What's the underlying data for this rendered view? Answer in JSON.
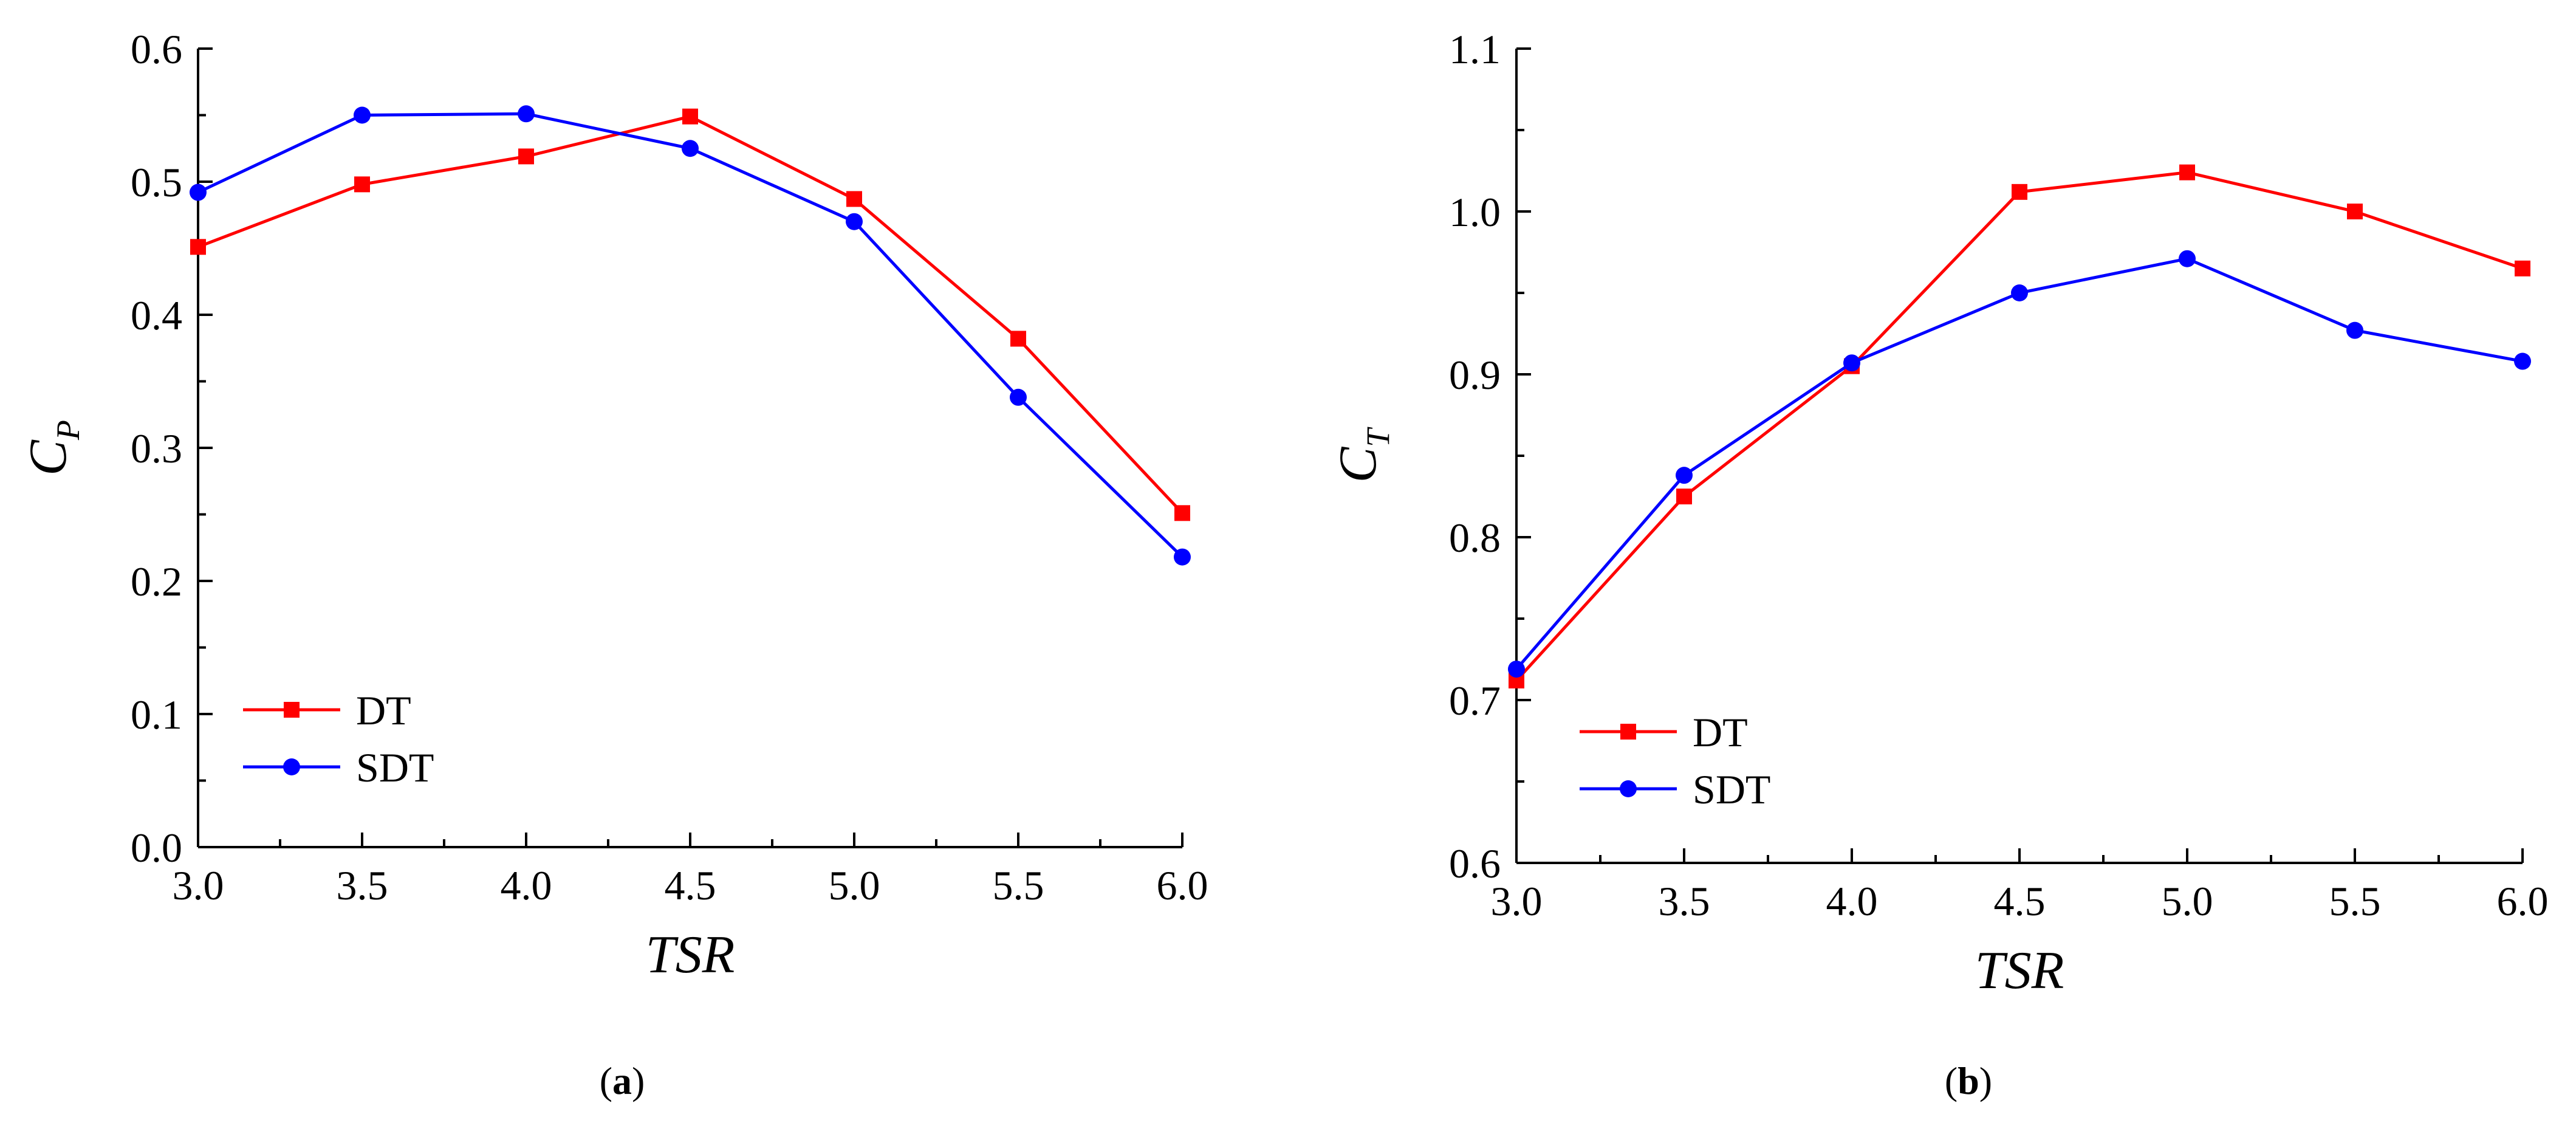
{
  "chart_data": [
    {
      "type": "line",
      "panel": "a",
      "xlabel": "TSR",
      "ylabel": "C",
      "ylabel_sub": "P",
      "xlim": [
        3.0,
        6.0
      ],
      "ylim": [
        0.0,
        0.6
      ],
      "xticks": [
        "3.0",
        "3.5",
        "4.0",
        "4.5",
        "5.0",
        "5.5",
        "6.0"
      ],
      "yticks": [
        "0.0",
        "0.1",
        "0.2",
        "0.3",
        "0.4",
        "0.5",
        "0.6"
      ],
      "x": [
        3.0,
        3.5,
        4.0,
        4.5,
        5.0,
        5.5,
        6.0
      ],
      "series": [
        {
          "name": "DT",
          "color": "#ff0000",
          "marker": "square",
          "values": [
            0.451,
            0.498,
            0.519,
            0.549,
            0.487,
            0.382,
            0.251
          ]
        },
        {
          "name": "SDT",
          "color": "#0000ff",
          "marker": "circle",
          "values": [
            0.492,
            0.55,
            0.551,
            0.525,
            0.47,
            0.338,
            0.218
          ]
        }
      ],
      "legend_position": "bottom-left",
      "caption_open": "(",
      "caption_letter": "a",
      "caption_close": ")"
    },
    {
      "type": "line",
      "panel": "b",
      "xlabel": "TSR",
      "ylabel": "C",
      "ylabel_sub": "T",
      "xlim": [
        3.0,
        6.0
      ],
      "ylim": [
        0.6,
        1.1
      ],
      "xticks": [
        "3.0",
        "3.5",
        "4.0",
        "4.5",
        "5.0",
        "5.5",
        "6.0"
      ],
      "yticks": [
        "0.6",
        "0.7",
        "0.8",
        "0.9",
        "1.0",
        "1.1"
      ],
      "x": [
        3.0,
        3.5,
        4.0,
        4.5,
        5.0,
        5.5,
        6.0
      ],
      "series": [
        {
          "name": "DT",
          "color": "#ff0000",
          "marker": "square",
          "values": [
            0.712,
            0.825,
            0.905,
            1.012,
            1.024,
            1.0,
            0.965
          ]
        },
        {
          "name": "SDT",
          "color": "#0000ff",
          "marker": "circle",
          "values": [
            0.719,
            0.838,
            0.907,
            0.95,
            0.971,
            0.927,
            0.908
          ]
        }
      ],
      "legend_position": "bottom-left",
      "caption_open": "(",
      "caption_letter": "b",
      "caption_close": ")"
    }
  ]
}
